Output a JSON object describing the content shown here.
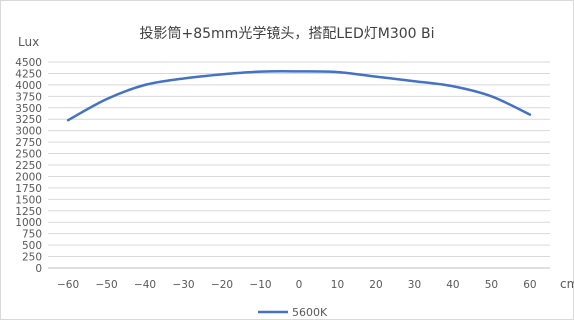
{
  "chart_data": {
    "type": "line",
    "title": "投影筒+85mm光学镜头，搭配LED灯M300 Bi",
    "xlabel": "cm",
    "ylabel": "Lux",
    "x": [
      -60,
      -50,
      -40,
      -30,
      -20,
      -10,
      0,
      10,
      20,
      30,
      40,
      50,
      60
    ],
    "x_tick_labels": [
      "−60",
      "−50",
      "−40",
      "−30",
      "−20",
      "−10",
      "0",
      "10",
      "20",
      "30",
      "40",
      "50",
      "60"
    ],
    "ylim": [
      0,
      4500
    ],
    "y_ticks": [
      0,
      250,
      500,
      750,
      1000,
      1250,
      1500,
      1750,
      2000,
      2250,
      2500,
      2750,
      3000,
      3250,
      3500,
      3750,
      4000,
      4250,
      4500
    ],
    "y_tick_labels": [
      "0",
      "250",
      "500",
      "750",
      "1000",
      "1250",
      "1500",
      "1750",
      "2000",
      "2250",
      "2500",
      "2750",
      "3000",
      "3250",
      "3500",
      "3750",
      "4000",
      "4250",
      "4500"
    ],
    "grid": true,
    "legend_position": "bottom",
    "series": [
      {
        "name": "5600K",
        "color": "#4472c4",
        "values": [
          3230,
          3690,
          4000,
          4140,
          4230,
          4290,
          4295,
          4280,
          4180,
          4080,
          3970,
          3750,
          3350
        ]
      }
    ]
  }
}
